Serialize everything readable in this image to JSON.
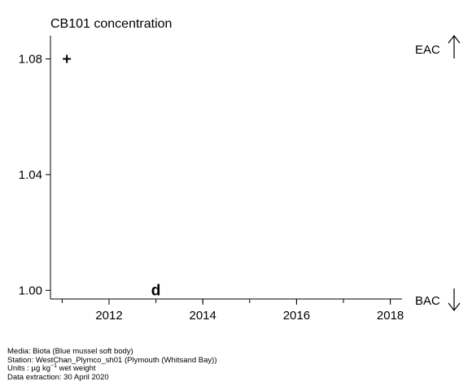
{
  "chart_data": {
    "type": "scatter",
    "title": "CB101 concentration",
    "xlabel": "",
    "ylabel": "",
    "xlim": [
      2010.75,
      2018.25
    ],
    "ylim": [
      0.997,
      1.088
    ],
    "x_ticks": [
      2012,
      2014,
      2016,
      2018
    ],
    "y_ticks": [
      1.0,
      1.04,
      1.08
    ],
    "y_tick_labels": [
      "1.00",
      "1.04",
      "1.08"
    ],
    "grid": false,
    "points": [
      {
        "x": 2011.1,
        "y": 1.08,
        "symbol": "+"
      },
      {
        "x": 2013.0,
        "y": 1.0,
        "symbol": "d"
      }
    ],
    "right_labels": {
      "top": "EAC",
      "bottom": "BAC"
    }
  },
  "footer": {
    "media": "Media: Biota (Blue mussel soft body)",
    "station": "Station: WestChan_Plymco_sh01 (Plymouth (Whitsand Bay))",
    "units_prefix": "Units : µg kg",
    "units_exponent": "−1",
    "units_suffix": " wet weight",
    "extraction": "Data extraction: 30 April 2020"
  }
}
